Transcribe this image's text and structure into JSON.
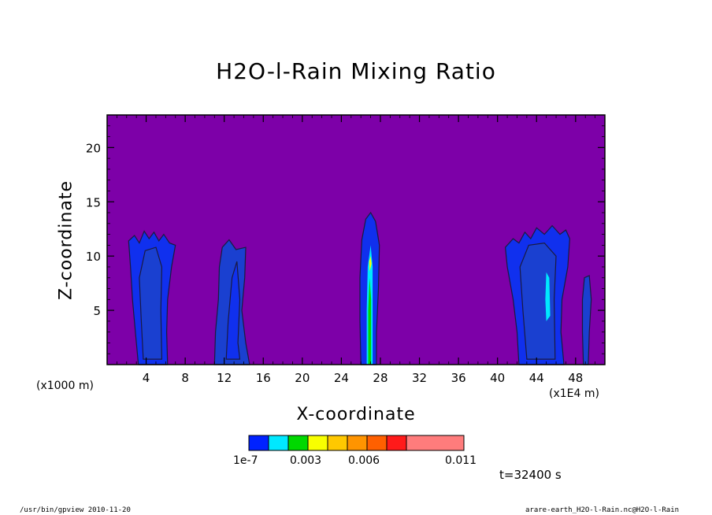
{
  "chart_data": {
    "type": "heatmap",
    "title": "H2O-l-Rain Mixing Ratio",
    "xlabel": "X-coordinate",
    "ylabel": "Z-coordinate",
    "x_unit": "(x1000 m)",
    "x_extra_unit": "(x1E4 m)",
    "xlim": [
      0,
      51
    ],
    "ylim": [
      0,
      23
    ],
    "x_ticks": [
      4,
      8,
      12,
      16,
      20,
      24,
      28,
      32,
      36,
      40,
      44,
      48
    ],
    "y_ticks": [
      5,
      10,
      15,
      20
    ],
    "background_color": "#7d00a8",
    "colorbar": {
      "colors": [
        "#0022ff",
        "#00e8ff",
        "#00d800",
        "#f8ff00",
        "#ffc800",
        "#ff9400",
        "#ff6000",
        "#ff1a1a",
        "#ff7c7c"
      ],
      "labels": [
        "1e-7",
        "0.003",
        "0.006",
        "0.011"
      ]
    },
    "time_label": "t=32400 s",
    "footer_left": "/usr/bin/gpview  2010-11-20",
    "footer_right": "arare-earth_H2O-l-Rain.nc@H2O-l-Rain"
  }
}
